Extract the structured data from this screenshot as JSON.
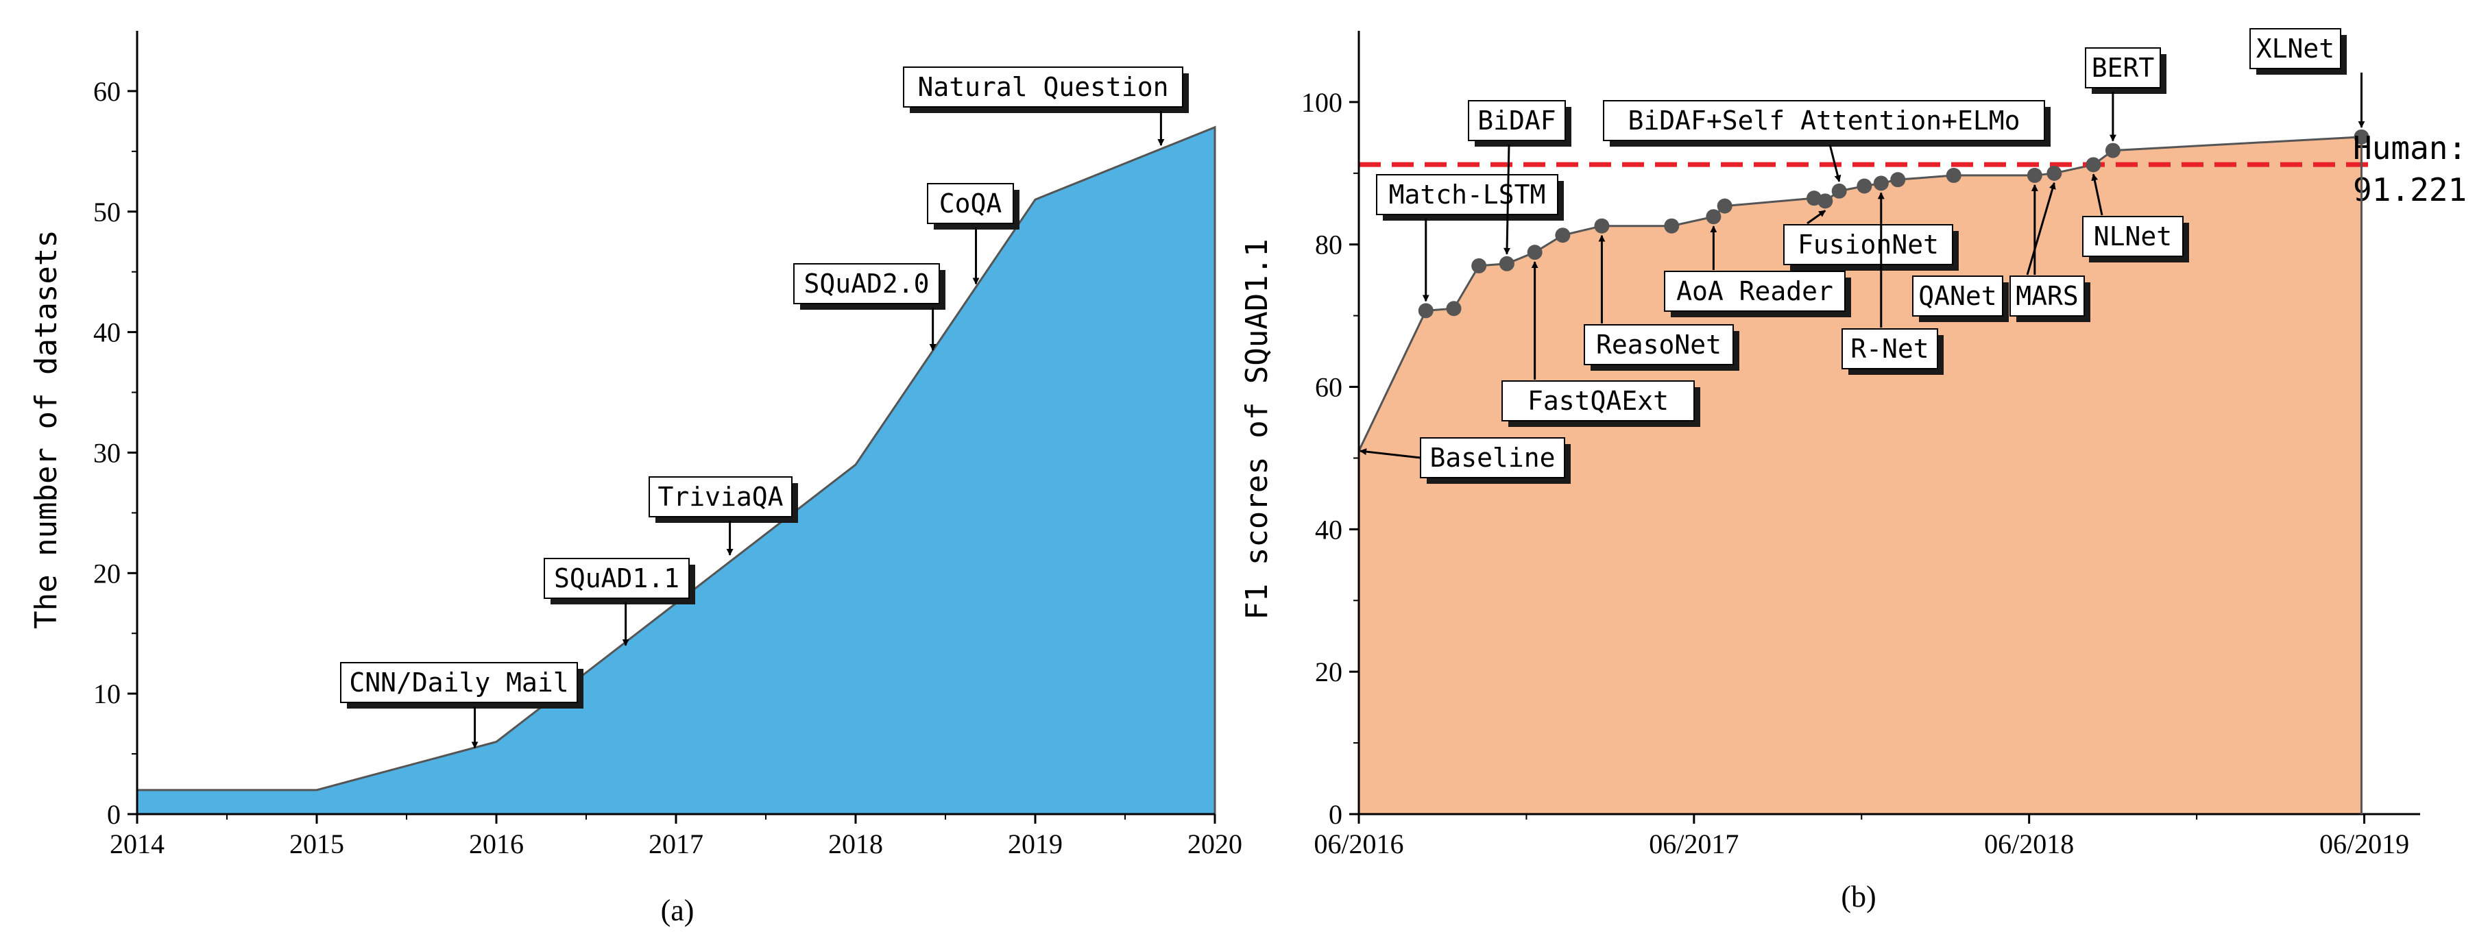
{
  "chart_data": [
    {
      "type": "area",
      "caption": "(a)",
      "xlabel": "",
      "ylabel": "The number of datasets",
      "xlim": [
        2014,
        2020
      ],
      "ylim": [
        0,
        65
      ],
      "xticks": [
        2014,
        2015,
        2016,
        2017,
        2018,
        2019,
        2020
      ],
      "yticks": [
        0,
        10,
        20,
        30,
        40,
        50,
        60
      ],
      "fill_color": "#50b1e3",
      "x": [
        2014,
        2015,
        2016,
        2018,
        2019,
        2020
      ],
      "y": [
        2,
        2,
        6,
        29,
        51,
        57
      ],
      "annotations": [
        {
          "text": "CNN/Daily Mail",
          "x": 2015.88,
          "y": 5.5
        },
        {
          "text": "SQuAD1.1",
          "x": 2016.72,
          "y": 14
        },
        {
          "text": "TriviaQA",
          "x": 2017.3,
          "y": 21.5
        },
        {
          "text": "SQuAD2.0",
          "x": 2018.43,
          "y": 38.5
        },
        {
          "text": "CoQA",
          "x": 2018.67,
          "y": 44
        },
        {
          "text": "Natural Question",
          "x": 2019.7,
          "y": 55.5
        }
      ]
    },
    {
      "type": "line",
      "caption": "(b)",
      "xlabel": "",
      "ylabel": "F1 scores of SQuAD1.1",
      "xlim": [
        0,
        38
      ],
      "ylim": [
        0,
        110
      ],
      "xticks": [
        "06/2016",
        "06/2017",
        "06/2018",
        "06/2019"
      ],
      "xtick_positions": [
        0,
        12,
        24,
        36
      ],
      "yticks": [
        0,
        20,
        40,
        60,
        80,
        100
      ],
      "fill_color": "#f7bb94",
      "human": {
        "value": 91.221,
        "label_line1": "Human:",
        "label_line2": "91.221",
        "color": "#e8202a"
      },
      "x": [
        0,
        2.4,
        3.4,
        4.3,
        5.3,
        6.3,
        7.3,
        8.7,
        11.2,
        12.7,
        13.1,
        16.3,
        16.7,
        17.2,
        18.1,
        18.7,
        19.3,
        21.3,
        24.2,
        24.9,
        26.3,
        27.0,
        35.9
      ],
      "y": [
        51.0,
        70.7,
        71.0,
        77.0,
        77.3,
        78.9,
        81.3,
        82.6,
        82.6,
        83.9,
        85.4,
        86.5,
        86.1,
        87.5,
        88.2,
        88.6,
        89.1,
        89.7,
        89.7,
        90.0,
        91.2,
        93.2,
        95.1
      ],
      "annotations": [
        {
          "text": "Baseline"
        },
        {
          "text": "Match-LSTM"
        },
        {
          "text": "BiDAF"
        },
        {
          "text": "FastQAExt"
        },
        {
          "text": "ReasoNet"
        },
        {
          "text": "AoA Reader"
        },
        {
          "text": "BiDAF+Self Attention+ELMo"
        },
        {
          "text": "FusionNet"
        },
        {
          "text": "R-Net"
        },
        {
          "text": "QANet"
        },
        {
          "text": "MARS"
        },
        {
          "text": "NLNet"
        },
        {
          "text": "BERT"
        },
        {
          "text": "XLNet"
        }
      ]
    }
  ]
}
